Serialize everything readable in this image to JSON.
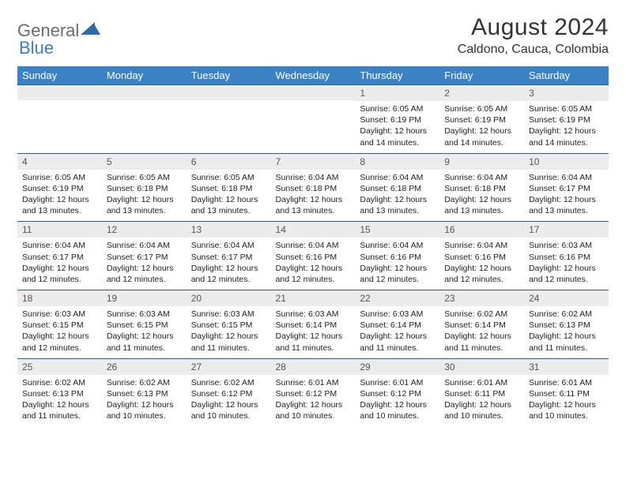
{
  "logo": {
    "word1": "General",
    "word2": "Blue"
  },
  "title": "August 2024",
  "location": "Caldono, Cauca, Colombia",
  "colors": {
    "headerBg": "#3b82c4",
    "headerText": "#ffffff",
    "dayNumBg": "#ececec",
    "rowBorder": "#2a5c8a",
    "logoGray": "#6b6b6b",
    "logoBlue": "#3b7fbf"
  },
  "typography": {
    "titleSize": 30,
    "locationSize": 16,
    "headerSize": 13,
    "dayNumSize": 12,
    "detailSize": 10.5
  },
  "dayHeaders": [
    "Sunday",
    "Monday",
    "Tuesday",
    "Wednesday",
    "Thursday",
    "Friday",
    "Saturday"
  ],
  "weeks": [
    [
      {
        "n": "",
        "lines": []
      },
      {
        "n": "",
        "lines": []
      },
      {
        "n": "",
        "lines": []
      },
      {
        "n": "",
        "lines": []
      },
      {
        "n": "1",
        "lines": [
          "Sunrise: 6:05 AM",
          "Sunset: 6:19 PM",
          "Daylight: 12 hours and 14 minutes."
        ]
      },
      {
        "n": "2",
        "lines": [
          "Sunrise: 6:05 AM",
          "Sunset: 6:19 PM",
          "Daylight: 12 hours and 14 minutes."
        ]
      },
      {
        "n": "3",
        "lines": [
          "Sunrise: 6:05 AM",
          "Sunset: 6:19 PM",
          "Daylight: 12 hours and 14 minutes."
        ]
      }
    ],
    [
      {
        "n": "4",
        "lines": [
          "Sunrise: 6:05 AM",
          "Sunset: 6:19 PM",
          "Daylight: 12 hours and 13 minutes."
        ]
      },
      {
        "n": "5",
        "lines": [
          "Sunrise: 6:05 AM",
          "Sunset: 6:18 PM",
          "Daylight: 12 hours and 13 minutes."
        ]
      },
      {
        "n": "6",
        "lines": [
          "Sunrise: 6:05 AM",
          "Sunset: 6:18 PM",
          "Daylight: 12 hours and 13 minutes."
        ]
      },
      {
        "n": "7",
        "lines": [
          "Sunrise: 6:04 AM",
          "Sunset: 6:18 PM",
          "Daylight: 12 hours and 13 minutes."
        ]
      },
      {
        "n": "8",
        "lines": [
          "Sunrise: 6:04 AM",
          "Sunset: 6:18 PM",
          "Daylight: 12 hours and 13 minutes."
        ]
      },
      {
        "n": "9",
        "lines": [
          "Sunrise: 6:04 AM",
          "Sunset: 6:18 PM",
          "Daylight: 12 hours and 13 minutes."
        ]
      },
      {
        "n": "10",
        "lines": [
          "Sunrise: 6:04 AM",
          "Sunset: 6:17 PM",
          "Daylight: 12 hours and 13 minutes."
        ]
      }
    ],
    [
      {
        "n": "11",
        "lines": [
          "Sunrise: 6:04 AM",
          "Sunset: 6:17 PM",
          "Daylight: 12 hours and 12 minutes."
        ]
      },
      {
        "n": "12",
        "lines": [
          "Sunrise: 6:04 AM",
          "Sunset: 6:17 PM",
          "Daylight: 12 hours and 12 minutes."
        ]
      },
      {
        "n": "13",
        "lines": [
          "Sunrise: 6:04 AM",
          "Sunset: 6:17 PM",
          "Daylight: 12 hours and 12 minutes."
        ]
      },
      {
        "n": "14",
        "lines": [
          "Sunrise: 6:04 AM",
          "Sunset: 6:16 PM",
          "Daylight: 12 hours and 12 minutes."
        ]
      },
      {
        "n": "15",
        "lines": [
          "Sunrise: 6:04 AM",
          "Sunset: 6:16 PM",
          "Daylight: 12 hours and 12 minutes."
        ]
      },
      {
        "n": "16",
        "lines": [
          "Sunrise: 6:04 AM",
          "Sunset: 6:16 PM",
          "Daylight: 12 hours and 12 minutes."
        ]
      },
      {
        "n": "17",
        "lines": [
          "Sunrise: 6:03 AM",
          "Sunset: 6:16 PM",
          "Daylight: 12 hours and 12 minutes."
        ]
      }
    ],
    [
      {
        "n": "18",
        "lines": [
          "Sunrise: 6:03 AM",
          "Sunset: 6:15 PM",
          "Daylight: 12 hours and 12 minutes."
        ]
      },
      {
        "n": "19",
        "lines": [
          "Sunrise: 6:03 AM",
          "Sunset: 6:15 PM",
          "Daylight: 12 hours and 11 minutes."
        ]
      },
      {
        "n": "20",
        "lines": [
          "Sunrise: 6:03 AM",
          "Sunset: 6:15 PM",
          "Daylight: 12 hours and 11 minutes."
        ]
      },
      {
        "n": "21",
        "lines": [
          "Sunrise: 6:03 AM",
          "Sunset: 6:14 PM",
          "Daylight: 12 hours and 11 minutes."
        ]
      },
      {
        "n": "22",
        "lines": [
          "Sunrise: 6:03 AM",
          "Sunset: 6:14 PM",
          "Daylight: 12 hours and 11 minutes."
        ]
      },
      {
        "n": "23",
        "lines": [
          "Sunrise: 6:02 AM",
          "Sunset: 6:14 PM",
          "Daylight: 12 hours and 11 minutes."
        ]
      },
      {
        "n": "24",
        "lines": [
          "Sunrise: 6:02 AM",
          "Sunset: 6:13 PM",
          "Daylight: 12 hours and 11 minutes."
        ]
      }
    ],
    [
      {
        "n": "25",
        "lines": [
          "Sunrise: 6:02 AM",
          "Sunset: 6:13 PM",
          "Daylight: 12 hours and 11 minutes."
        ]
      },
      {
        "n": "26",
        "lines": [
          "Sunrise: 6:02 AM",
          "Sunset: 6:13 PM",
          "Daylight: 12 hours and 10 minutes."
        ]
      },
      {
        "n": "27",
        "lines": [
          "Sunrise: 6:02 AM",
          "Sunset: 6:12 PM",
          "Daylight: 12 hours and 10 minutes."
        ]
      },
      {
        "n": "28",
        "lines": [
          "Sunrise: 6:01 AM",
          "Sunset: 6:12 PM",
          "Daylight: 12 hours and 10 minutes."
        ]
      },
      {
        "n": "29",
        "lines": [
          "Sunrise: 6:01 AM",
          "Sunset: 6:12 PM",
          "Daylight: 12 hours and 10 minutes."
        ]
      },
      {
        "n": "30",
        "lines": [
          "Sunrise: 6:01 AM",
          "Sunset: 6:11 PM",
          "Daylight: 12 hours and 10 minutes."
        ]
      },
      {
        "n": "31",
        "lines": [
          "Sunrise: 6:01 AM",
          "Sunset: 6:11 PM",
          "Daylight: 12 hours and 10 minutes."
        ]
      }
    ]
  ]
}
